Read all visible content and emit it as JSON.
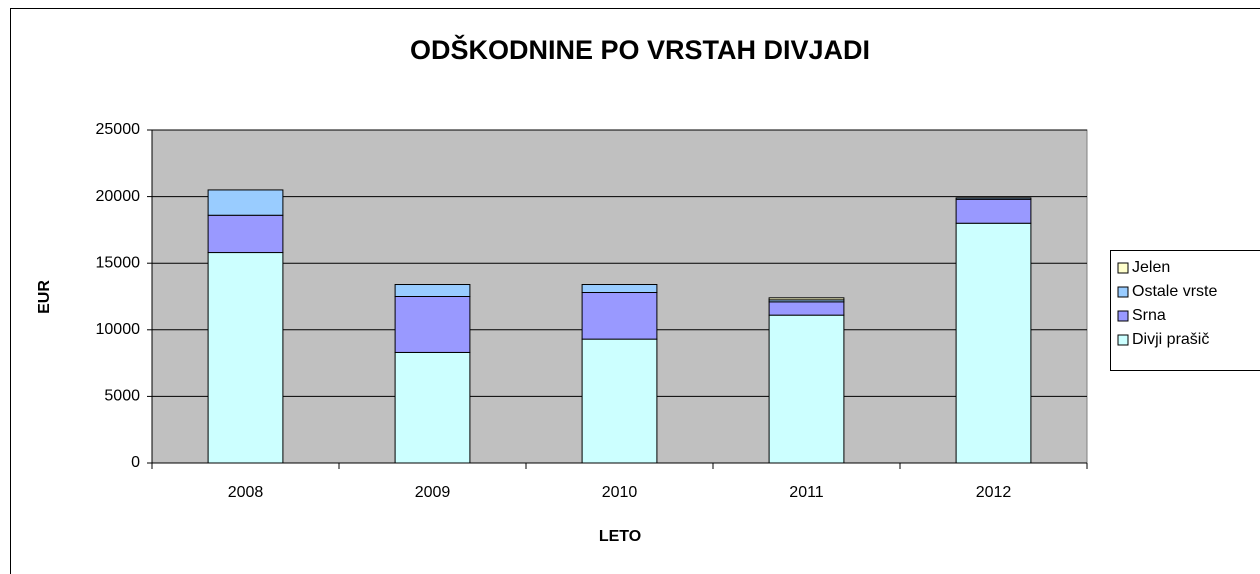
{
  "chart_data": {
    "type": "stacked_bar",
    "title": "ODŠKODNINE PO VRSTAH DIVJADI",
    "x_label": "LETO",
    "y_label": "EUR",
    "categories": [
      "2008",
      "2009",
      "2010",
      "2011",
      "2012"
    ],
    "series": [
      {
        "name": "Divji prašič",
        "color": "#ccffff",
        "values": [
          15800,
          8300,
          9300,
          11100,
          18000
        ]
      },
      {
        "name": "Srna",
        "color": "#9999ff",
        "values": [
          2800,
          4200,
          3500,
          1000,
          1800
        ]
      },
      {
        "name": "Ostale vrste",
        "color": "#99ccff",
        "values": [
          1900,
          900,
          600,
          150,
          100
        ]
      },
      {
        "name": "Jelen",
        "color": "#ffffcc",
        "values": [
          0,
          0,
          0,
          150,
          0
        ]
      }
    ],
    "ylim": [
      0,
      25000
    ],
    "yticks": [
      0,
      5000,
      10000,
      15000,
      20000,
      25000
    ],
    "grid": true,
    "legend": "right",
    "plot_background": "#c0c0c0"
  }
}
